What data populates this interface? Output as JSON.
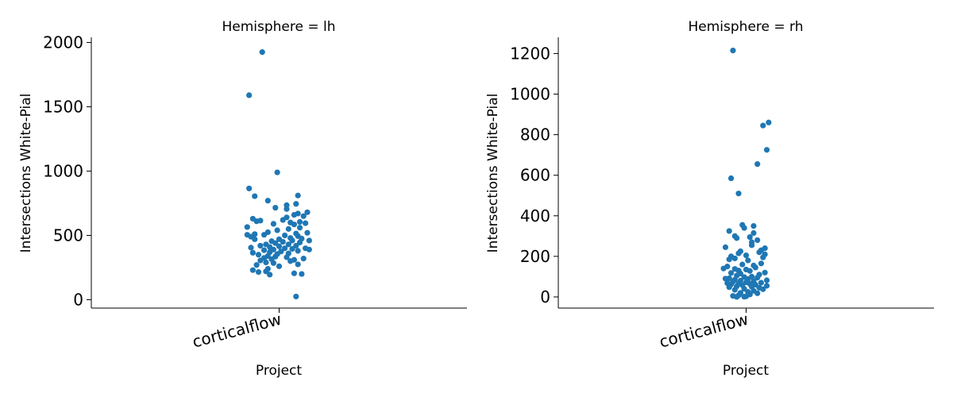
{
  "chart_data": [
    {
      "type": "scatter",
      "title": "Hemisphere = lh",
      "xlabel": "Project",
      "ylabel": "Intersections White-Pial",
      "categories": [
        "corticalflow"
      ],
      "yticks": [
        0,
        500,
        1000,
        1500,
        2000
      ],
      "ylim": [
        -65,
        2040
      ],
      "grid": false,
      "color": "#1f77b4",
      "series": [
        {
          "category": "corticalflow",
          "points": [
            {
              "offset": -0.09,
              "y": 1925
            },
            {
              "offset": -0.16,
              "y": 1590
            },
            {
              "offset": -0.01,
              "y": 990
            },
            {
              "offset": -0.16,
              "y": 865
            },
            {
              "offset": 0.1,
              "y": 810
            },
            {
              "offset": -0.13,
              "y": 805
            },
            {
              "offset": -0.06,
              "y": 770
            },
            {
              "offset": 0.09,
              "y": 745
            },
            {
              "offset": 0.04,
              "y": 735
            },
            {
              "offset": -0.02,
              "y": 715
            },
            {
              "offset": 0.04,
              "y": 705
            },
            {
              "offset": 0.15,
              "y": 680
            },
            {
              "offset": 0.1,
              "y": 670
            },
            {
              "offset": 0.08,
              "y": 660
            },
            {
              "offset": 0.04,
              "y": 640
            },
            {
              "offset": 0.13,
              "y": 650
            },
            {
              "offset": -0.14,
              "y": 630
            },
            {
              "offset": -0.1,
              "y": 615
            },
            {
              "offset": -0.12,
              "y": 610
            },
            {
              "offset": 0.02,
              "y": 620
            },
            {
              "offset": 0.06,
              "y": 600
            },
            {
              "offset": 0.11,
              "y": 605
            },
            {
              "offset": 0.14,
              "y": 595
            },
            {
              "offset": 0.08,
              "y": 585
            },
            {
              "offset": -0.03,
              "y": 590
            },
            {
              "offset": -0.17,
              "y": 565
            },
            {
              "offset": 0.11,
              "y": 560
            },
            {
              "offset": 0.05,
              "y": 550
            },
            {
              "offset": -0.01,
              "y": 540
            },
            {
              "offset": -0.06,
              "y": 525
            },
            {
              "offset": 0.15,
              "y": 520
            },
            {
              "offset": 0.09,
              "y": 515
            },
            {
              "offset": -0.13,
              "y": 510
            },
            {
              "offset": -0.17,
              "y": 505
            },
            {
              "offset": -0.08,
              "y": 505
            },
            {
              "offset": 0.03,
              "y": 500
            },
            {
              "offset": 0.1,
              "y": 495
            },
            {
              "offset": -0.15,
              "y": 490
            },
            {
              "offset": 0.06,
              "y": 480
            },
            {
              "offset": 0.12,
              "y": 475
            },
            {
              "offset": 0.0,
              "y": 470
            },
            {
              "offset": -0.13,
              "y": 470
            },
            {
              "offset": 0.16,
              "y": 460
            },
            {
              "offset": 0.07,
              "y": 460
            },
            {
              "offset": -0.04,
              "y": 455
            },
            {
              "offset": 0.02,
              "y": 450
            },
            {
              "offset": 0.11,
              "y": 445
            },
            {
              "offset": -0.02,
              "y": 440
            },
            {
              "offset": -0.07,
              "y": 430
            },
            {
              "offset": 0.05,
              "y": 430
            },
            {
              "offset": 0.09,
              "y": 420
            },
            {
              "offset": -0.1,
              "y": 420
            },
            {
              "offset": 0.0,
              "y": 415
            },
            {
              "offset": -0.05,
              "y": 410
            },
            {
              "offset": -0.15,
              "y": 405
            },
            {
              "offset": 0.14,
              "y": 400
            },
            {
              "offset": 0.03,
              "y": 400
            },
            {
              "offset": 0.07,
              "y": 395
            },
            {
              "offset": 0.16,
              "y": 390
            },
            {
              "offset": -0.03,
              "y": 390
            },
            {
              "offset": -0.08,
              "y": 385
            },
            {
              "offset": 0.1,
              "y": 380
            },
            {
              "offset": 0.01,
              "y": 375
            },
            {
              "offset": -0.05,
              "y": 370
            },
            {
              "offset": -0.14,
              "y": 365
            },
            {
              "offset": 0.05,
              "y": 360
            },
            {
              "offset": -0.01,
              "y": 355
            },
            {
              "offset": -0.11,
              "y": 350
            },
            {
              "offset": -0.06,
              "y": 340
            },
            {
              "offset": -0.02,
              "y": 335
            },
            {
              "offset": 0.04,
              "y": 330
            },
            {
              "offset": -0.08,
              "y": 325
            },
            {
              "offset": 0.13,
              "y": 320
            },
            {
              "offset": -0.04,
              "y": 315
            },
            {
              "offset": 0.08,
              "y": 310
            },
            {
              "offset": -0.1,
              "y": 305
            },
            {
              "offset": 0.06,
              "y": 300
            },
            {
              "offset": -0.07,
              "y": 290
            },
            {
              "offset": -0.03,
              "y": 285
            },
            {
              "offset": 0.1,
              "y": 275
            },
            {
              "offset": -0.12,
              "y": 270
            },
            {
              "offset": 0.0,
              "y": 260
            },
            {
              "offset": -0.06,
              "y": 240
            },
            {
              "offset": -0.14,
              "y": 230
            },
            {
              "offset": -0.11,
              "y": 215
            },
            {
              "offset": -0.07,
              "y": 220
            },
            {
              "offset": 0.08,
              "y": 205
            },
            {
              "offset": 0.12,
              "y": 200
            },
            {
              "offset": -0.05,
              "y": 195
            },
            {
              "offset": 0.09,
              "y": 25
            }
          ]
        }
      ]
    },
    {
      "type": "scatter",
      "title": "Hemisphere = rh",
      "xlabel": "Project",
      "ylabel": "Intersections White-Pial",
      "categories": [
        "corticalflow"
      ],
      "yticks": [
        0,
        200,
        400,
        600,
        800,
        1000,
        1200
      ],
      "ylim": [
        -55,
        1280
      ],
      "grid": false,
      "color": "#1f77b4",
      "series": [
        {
          "category": "corticalflow",
          "points": [
            {
              "offset": -0.07,
              "y": 1215
            },
            {
              "offset": 0.12,
              "y": 860
            },
            {
              "offset": 0.09,
              "y": 845
            },
            {
              "offset": 0.11,
              "y": 725
            },
            {
              "offset": 0.06,
              "y": 655
            },
            {
              "offset": -0.08,
              "y": 585
            },
            {
              "offset": -0.04,
              "y": 510
            },
            {
              "offset": -0.02,
              "y": 355
            },
            {
              "offset": 0.04,
              "y": 350
            },
            {
              "offset": -0.01,
              "y": 340
            },
            {
              "offset": -0.09,
              "y": 325
            },
            {
              "offset": 0.04,
              "y": 315
            },
            {
              "offset": -0.06,
              "y": 300
            },
            {
              "offset": 0.02,
              "y": 295
            },
            {
              "offset": 0.06,
              "y": 280
            },
            {
              "offset": -0.05,
              "y": 290
            },
            {
              "offset": 0.03,
              "y": 270
            },
            {
              "offset": 0.03,
              "y": 255
            },
            {
              "offset": -0.11,
              "y": 245
            },
            {
              "offset": 0.1,
              "y": 240
            },
            {
              "offset": 0.08,
              "y": 230
            },
            {
              "offset": 0.07,
              "y": 220
            },
            {
              "offset": -0.03,
              "y": 225
            },
            {
              "offset": -0.04,
              "y": 215
            },
            {
              "offset": 0.1,
              "y": 210
            },
            {
              "offset": 0.0,
              "y": 205
            },
            {
              "offset": -0.08,
              "y": 200
            },
            {
              "offset": 0.09,
              "y": 195
            },
            {
              "offset": -0.06,
              "y": 190
            },
            {
              "offset": -0.09,
              "y": 185
            },
            {
              "offset": 0.01,
              "y": 180
            },
            {
              "offset": 0.08,
              "y": 165
            },
            {
              "offset": -0.02,
              "y": 160
            },
            {
              "offset": 0.04,
              "y": 155
            },
            {
              "offset": -0.1,
              "y": 150
            },
            {
              "offset": 0.05,
              "y": 145
            },
            {
              "offset": -0.12,
              "y": 140
            },
            {
              "offset": -0.06,
              "y": 138
            },
            {
              "offset": 0.0,
              "y": 135
            },
            {
              "offset": -0.04,
              "y": 130
            },
            {
              "offset": 0.02,
              "y": 128
            },
            {
              "offset": 0.1,
              "y": 120
            },
            {
              "offset": -0.08,
              "y": 118
            },
            {
              "offset": -0.03,
              "y": 115
            },
            {
              "offset": 0.07,
              "y": 110
            },
            {
              "offset": -0.05,
              "y": 105
            },
            {
              "offset": 0.03,
              "y": 100
            },
            {
              "offset": -0.01,
              "y": 98
            },
            {
              "offset": 0.06,
              "y": 95
            },
            {
              "offset": -0.09,
              "y": 92
            },
            {
              "offset": -0.11,
              "y": 90
            },
            {
              "offset": 0.01,
              "y": 88
            },
            {
              "offset": -0.06,
              "y": 85
            },
            {
              "offset": 0.11,
              "y": 82
            },
            {
              "offset": -0.03,
              "y": 80
            },
            {
              "offset": 0.04,
              "y": 78
            },
            {
              "offset": -0.07,
              "y": 75
            },
            {
              "offset": 0.0,
              "y": 72
            },
            {
              "offset": 0.08,
              "y": 70
            },
            {
              "offset": -0.1,
              "y": 68
            },
            {
              "offset": -0.04,
              "y": 66
            },
            {
              "offset": 0.02,
              "y": 64
            },
            {
              "offset": -0.08,
              "y": 62
            },
            {
              "offset": 0.05,
              "y": 60
            },
            {
              "offset": -0.02,
              "y": 58
            },
            {
              "offset": 0.11,
              "y": 55
            },
            {
              "offset": -0.05,
              "y": 52
            },
            {
              "offset": 0.03,
              "y": 50
            },
            {
              "offset": -0.09,
              "y": 48
            },
            {
              "offset": 0.07,
              "y": 45
            },
            {
              "offset": -0.01,
              "y": 40
            },
            {
              "offset": 0.09,
              "y": 38
            },
            {
              "offset": -0.06,
              "y": 35
            },
            {
              "offset": 0.04,
              "y": 30
            },
            {
              "offset": 0.01,
              "y": 25
            },
            {
              "offset": -0.03,
              "y": 20
            },
            {
              "offset": 0.06,
              "y": 18
            },
            {
              "offset": 0.02,
              "y": 12
            },
            {
              "offset": -0.04,
              "y": 8
            },
            {
              "offset": -0.07,
              "y": 5
            },
            {
              "offset": 0.0,
              "y": 3
            },
            {
              "offset": -0.01,
              "y": 1
            },
            {
              "offset": -0.05,
              "y": 0
            }
          ]
        }
      ]
    }
  ]
}
